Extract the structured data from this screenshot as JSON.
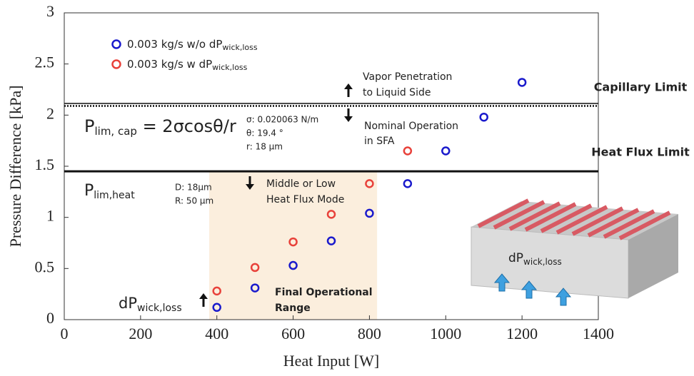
{
  "chart_data": {
    "type": "scatter",
    "xlabel": "Heat Input [W]",
    "ylabel": "Pressure Difference [kPa]",
    "xlim": [
      0,
      1400
    ],
    "xticks": [
      0,
      200,
      400,
      600,
      800,
      1000,
      1200,
      1400
    ],
    "ylim": [
      0,
      3
    ],
    "yticks": [
      0,
      0.5,
      1,
      1.5,
      2,
      2.5,
      3
    ],
    "series": [
      {
        "name": "0.003 kg/s w/o dP",
        "name_sub": "wick,loss",
        "color": "#1a1acc",
        "x": [
          400,
          500,
          600,
          700,
          800,
          900,
          1000,
          1100,
          1200
        ],
        "values": [
          0.12,
          0.31,
          0.53,
          0.77,
          1.04,
          1.33,
          1.65,
          1.98,
          2.32
        ]
      },
      {
        "name": "0.003 kg/s w dP",
        "name_sub": "wick,loss",
        "color": "#e8413a",
        "x": [
          400,
          500,
          600,
          700,
          800,
          900
        ],
        "values": [
          0.28,
          0.51,
          0.76,
          1.03,
          1.33,
          1.65
        ]
      }
    ],
    "reference_lines": [
      {
        "value": 2.1,
        "label": "Capillary Limit",
        "color": "#1f4e9e",
        "style": "dotted"
      },
      {
        "value": 1.45,
        "label": "Heat Flux Limit",
        "color": "#e0202a",
        "style": "solid"
      }
    ],
    "shaded_region": {
      "x": [
        380,
        820
      ],
      "y": [
        0,
        1.45
      ],
      "color": "#fbeedd",
      "label": [
        "Final Operational",
        "Range"
      ]
    },
    "annotations": {
      "cap_eq": {
        "main": "P",
        "sub": "lim, cap",
        "rest": " = 2σcosθ/r"
      },
      "cap_params": [
        "σ: 0.020063 N/m",
        "θ: 19.4 °",
        "r: 18 μm"
      ],
      "heat_eq": {
        "main": "P",
        "sub": "lim,heat"
      },
      "heat_params": [
        "D: 18μm",
        "R: 50 μm"
      ],
      "vapor": [
        "Vapor Penetration",
        "to Liquid Side"
      ],
      "nominal": [
        "Nominal Operation",
        "in SFA"
      ],
      "mode": [
        "Middle or Low",
        "Heat Flux Mode"
      ],
      "wick": {
        "main": "dP",
        "sub": "wick,loss"
      },
      "inset": {
        "main": "dP",
        "sub": "wick,loss"
      }
    }
  }
}
